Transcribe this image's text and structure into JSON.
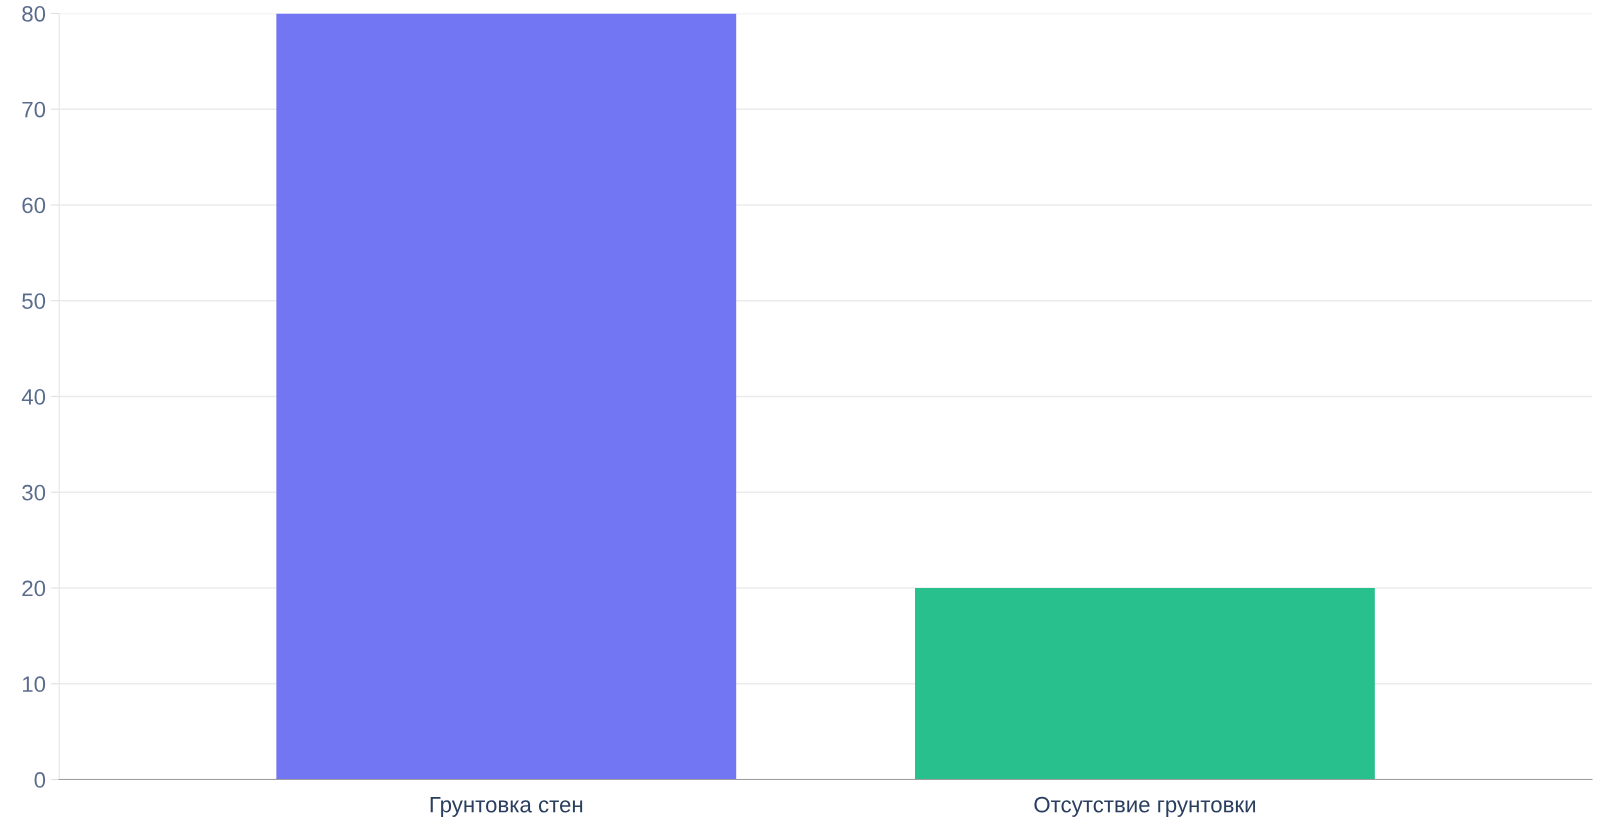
{
  "chart_data": {
    "type": "bar",
    "categories": [
      "Грунтовка стен",
      "Отсутствие грунтовки"
    ],
    "values": [
      80,
      20
    ],
    "colors": [
      "#7376f3",
      "#28c18e"
    ],
    "ylim": [
      0,
      80
    ],
    "yticks": [
      0,
      10,
      20,
      30,
      40,
      50,
      60,
      70,
      80
    ],
    "grid": "y",
    "legend": false
  }
}
